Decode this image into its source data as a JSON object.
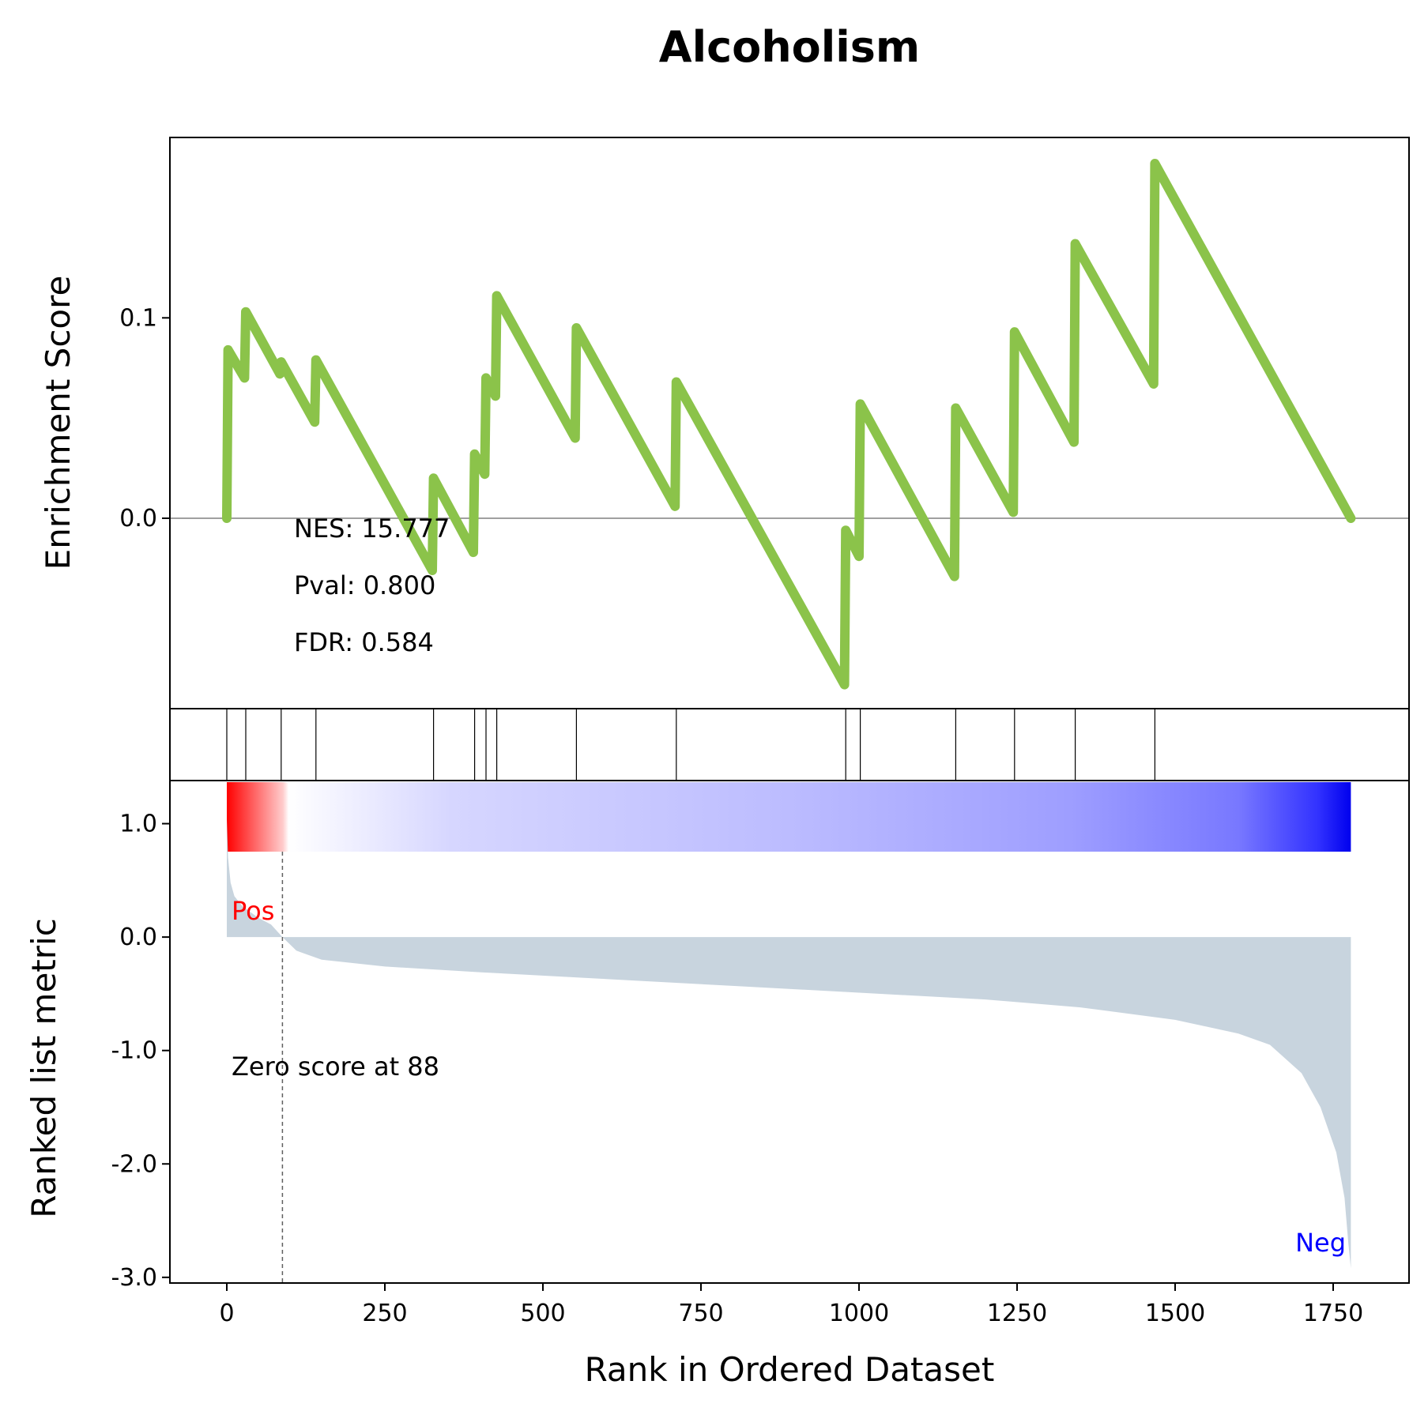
{
  "chart_data": {
    "type": "line",
    "title": "Alcoholism",
    "xlabel": "Rank in Ordered Dataset",
    "ylabel_top": "Enrichment Score",
    "ylabel_bottom": "Ranked list metric",
    "xlim": [
      -90,
      1870
    ],
    "ylim_top": [
      -0.095,
      0.19
    ],
    "ylim_bottom": [
      -3.05,
      1.38
    ],
    "xticks": [
      0,
      250,
      500,
      750,
      1000,
      1250,
      1500,
      1750
    ],
    "xtick_labels": [
      "0",
      "250",
      "500",
      "750",
      "1000",
      "1250",
      "1500",
      "1750"
    ],
    "yticks_top": [
      0.0,
      0.1
    ],
    "ytick_labels_top": [
      "0.0",
      "0.1"
    ],
    "yticks_bottom": [
      1.0,
      0.0,
      -1.0,
      -2.0,
      -3.0
    ],
    "ytick_labels_bottom": [
      "1.0",
      "0.0",
      "-1.0",
      "-2.0",
      "-3.0"
    ],
    "stats": {
      "nes": "NES: 15.777",
      "pval": "Pval: 0.800",
      "fdr": "FDR: 0.584"
    },
    "annotations": {
      "pos": "Pos",
      "neg": "Neg",
      "zero": "Zero score at 88"
    },
    "zero_cross_rank": 88,
    "n_genes": 1778,
    "colors": {
      "es_line": "#8bc34a",
      "metric_fill": "#c8d4de",
      "pos_text": "#ff0000",
      "neg_text": "#0000ff"
    },
    "running_es": [
      {
        "x": 0,
        "y": 0.0
      },
      {
        "x": 2,
        "y": 0.084
      },
      {
        "x": 28,
        "y": 0.07
      },
      {
        "x": 30,
        "y": 0.103
      },
      {
        "x": 84,
        "y": 0.072
      },
      {
        "x": 86,
        "y": 0.078
      },
      {
        "x": 139,
        "y": 0.048
      },
      {
        "x": 141,
        "y": 0.079
      },
      {
        "x": 325,
        "y": -0.026
      },
      {
        "x": 327,
        "y": 0.02
      },
      {
        "x": 390,
        "y": -0.017
      },
      {
        "x": 392,
        "y": 0.032
      },
      {
        "x": 408,
        "y": 0.022
      },
      {
        "x": 410,
        "y": 0.07
      },
      {
        "x": 425,
        "y": 0.061
      },
      {
        "x": 427,
        "y": 0.111
      },
      {
        "x": 551,
        "y": 0.04
      },
      {
        "x": 553,
        "y": 0.095
      },
      {
        "x": 709,
        "y": 0.006
      },
      {
        "x": 711,
        "y": 0.068
      },
      {
        "x": 977,
        "y": -0.083
      },
      {
        "x": 979,
        "y": -0.006
      },
      {
        "x": 1000,
        "y": -0.019
      },
      {
        "x": 1002,
        "y": 0.057
      },
      {
        "x": 1151,
        "y": -0.029
      },
      {
        "x": 1153,
        "y": 0.055
      },
      {
        "x": 1244,
        "y": 0.003
      },
      {
        "x": 1246,
        "y": 0.093
      },
      {
        "x": 1340,
        "y": 0.038
      },
      {
        "x": 1342,
        "y": 0.137
      },
      {
        "x": 1466,
        "y": 0.067
      },
      {
        "x": 1468,
        "y": 0.177
      },
      {
        "x": 1778,
        "y": 0.0
      }
    ],
    "hits": [
      0,
      30,
      86,
      141,
      327,
      392,
      410,
      427,
      553,
      711,
      979,
      1002,
      1153,
      1246,
      1342,
      1468
    ],
    "ranked_metric": [
      {
        "x": 0,
        "y": 1.04
      },
      {
        "x": 2,
        "y": 0.7
      },
      {
        "x": 6,
        "y": 0.48
      },
      {
        "x": 12,
        "y": 0.36
      },
      {
        "x": 25,
        "y": 0.27
      },
      {
        "x": 50,
        "y": 0.17
      },
      {
        "x": 70,
        "y": 0.11
      },
      {
        "x": 88,
        "y": 0.0
      },
      {
        "x": 110,
        "y": -0.12
      },
      {
        "x": 150,
        "y": -0.2
      },
      {
        "x": 250,
        "y": -0.26
      },
      {
        "x": 400,
        "y": -0.31
      },
      {
        "x": 600,
        "y": -0.37
      },
      {
        "x": 800,
        "y": -0.43
      },
      {
        "x": 1000,
        "y": -0.49
      },
      {
        "x": 1200,
        "y": -0.55
      },
      {
        "x": 1350,
        "y": -0.62
      },
      {
        "x": 1500,
        "y": -0.73
      },
      {
        "x": 1600,
        "y": -0.85
      },
      {
        "x": 1650,
        "y": -0.95
      },
      {
        "x": 1700,
        "y": -1.2
      },
      {
        "x": 1730,
        "y": -1.5
      },
      {
        "x": 1755,
        "y": -1.9
      },
      {
        "x": 1768,
        "y": -2.3
      },
      {
        "x": 1774,
        "y": -2.7
      },
      {
        "x": 1778,
        "y": -2.92
      }
    ]
  }
}
